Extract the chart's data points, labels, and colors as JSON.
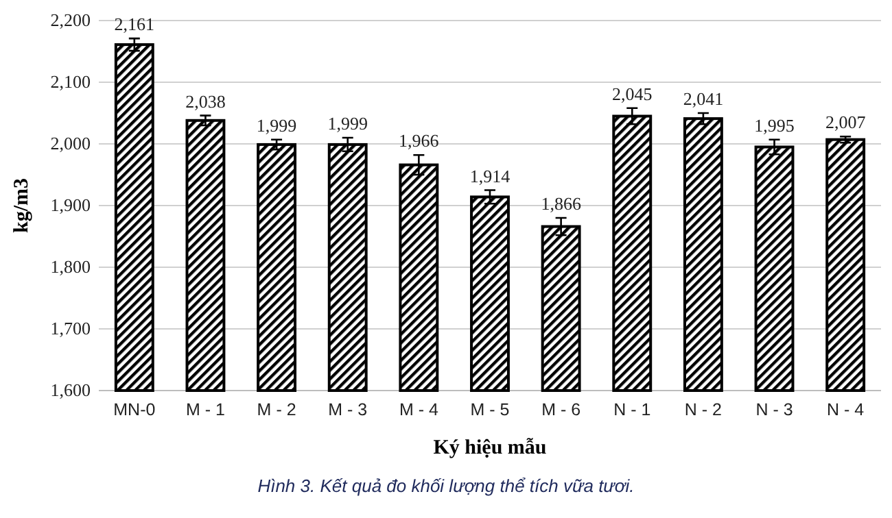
{
  "chart_data": {
    "type": "bar",
    "xlabel": "Ký hiệu mẫu",
    "ylabel": "kg/m3",
    "categories": [
      "MN-0",
      "M - 1",
      "M - 2",
      "M - 3",
      "M - 4",
      "M - 5",
      "M - 6",
      "N - 1",
      "N - 2",
      "N - 3",
      "N - 4"
    ],
    "values": [
      2161,
      2038,
      1999,
      1999,
      1966,
      1914,
      1866,
      2045,
      2041,
      1995,
      2007
    ],
    "errors": [
      10,
      8,
      8,
      11,
      16,
      11,
      14,
      13,
      9,
      12,
      5
    ],
    "value_labels": [
      "2,161",
      "2,038",
      "1,999",
      "1,999",
      "1,966",
      "1,914",
      "1,866",
      "2,045",
      "2,041",
      "1,995",
      "2,007"
    ],
    "color": "#000000",
    "ylim": [
      1600,
      2200
    ],
    "yticks": [
      {
        "value": 1600,
        "label": "1,600"
      },
      {
        "value": 1700,
        "label": "1,700"
      },
      {
        "value": 1800,
        "label": "1,800"
      },
      {
        "value": 1900,
        "label": "1,900"
      },
      {
        "value": 2000,
        "label": "2,000"
      },
      {
        "value": 2100,
        "label": "2,100"
      },
      {
        "value": 2200,
        "label": "2,200"
      }
    ],
    "grid": "y",
    "annotations": [
      "Hình 3. Kết quả đo khối lượng thể tích vữa tươi."
    ]
  }
}
